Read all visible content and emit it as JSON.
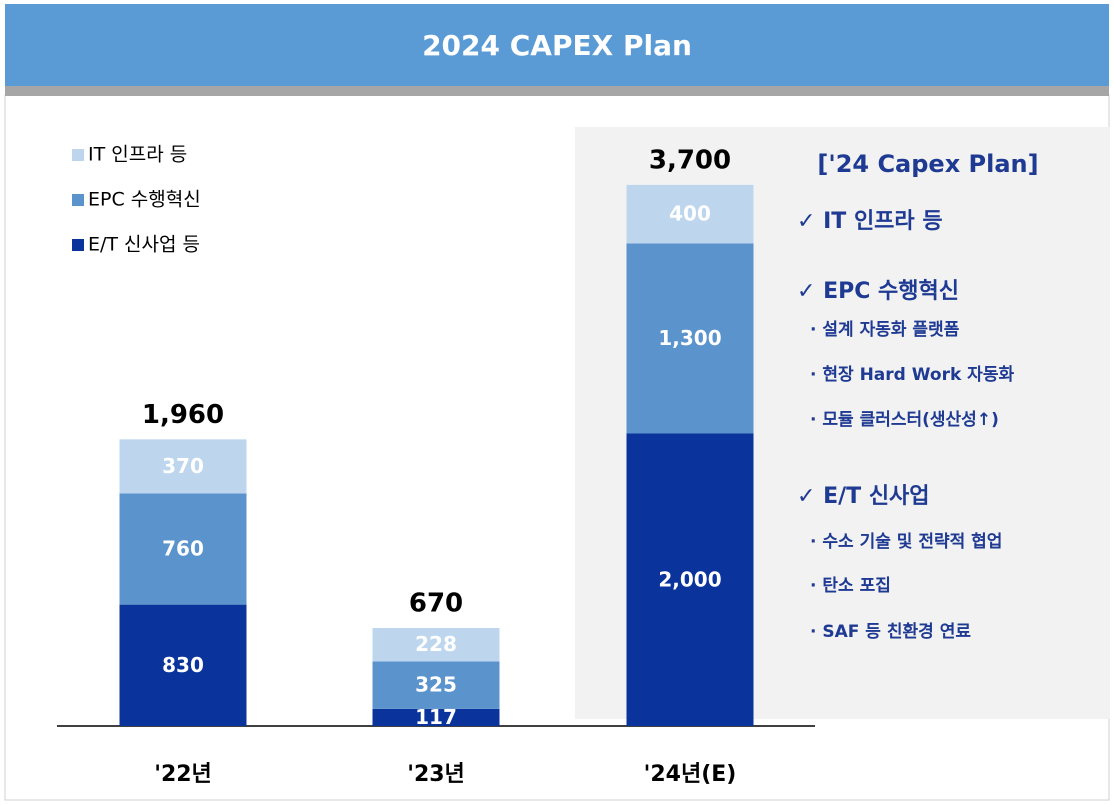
{
  "title": "2024 CAPEX Plan",
  "chart_data": {
    "type": "stacked-bar",
    "categories": [
      "'22년",
      "'23년",
      "'24년(E)"
    ],
    "series": [
      {
        "name": "E/T 신사업 등",
        "color": "#0a339c",
        "values": [
          830,
          117,
          2000
        ],
        "value_labels": [
          "830",
          "117",
          "2,000"
        ]
      },
      {
        "name": "EPC 수행혁신",
        "color": "#5b93cd",
        "values": [
          760,
          325,
          1300
        ],
        "value_labels": [
          "760",
          "325",
          "1,300"
        ]
      },
      {
        "name": "IT 인프라 등",
        "color": "#bdd6ee",
        "values": [
          370,
          228,
          400
        ],
        "value_labels": [
          "370",
          "228",
          "400"
        ]
      }
    ],
    "totals": [
      1960,
      670,
      3700
    ],
    "total_labels": [
      "1,960",
      "670",
      "3,700"
    ],
    "ylim": [
      0,
      4000
    ]
  },
  "panel": {
    "title": "['24 Capex Plan]",
    "sections": [
      {
        "heading": "✓ IT 인프라 등",
        "items": []
      },
      {
        "heading": "✓ EPC 수행혁신",
        "items": [
          "· 설계 자동화 플랫폼",
          "· 현장 Hard Work 자동화",
          "· 모듈 클러스터(생산성↑)"
        ]
      },
      {
        "heading": "✓ E/T 신사업",
        "items": [
          "· 수소 기술 및 전략적 협업",
          "· 탄소 포집",
          "· SAF 등 친환경 연료"
        ]
      }
    ]
  }
}
